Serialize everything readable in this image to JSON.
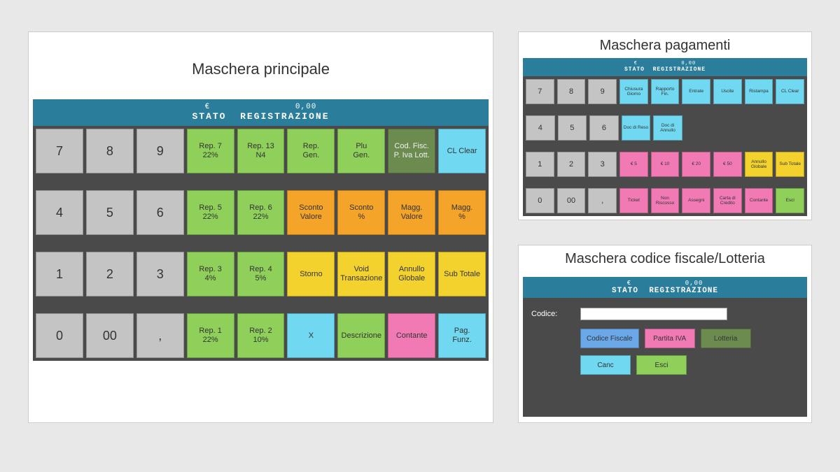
{
  "colors": {
    "page_bg": "#e8e8e8",
    "panel_bg": "#ffffff",
    "grid_bg": "#4a4a4a",
    "header_bg": "#2a7d9b",
    "num_bg": "#c4c4c4",
    "green": "#8ed05a",
    "olive": "#6c8b4f",
    "cyan": "#70d8f0",
    "orange": "#f4a428",
    "yellow": "#f4d22e",
    "pink": "#f17ab5",
    "blue": "#6aa8e8"
  },
  "header": {
    "line1_prefix": "€",
    "amount": "0,00",
    "status_label": "STATO",
    "reg_label": "REGISTRAZIONE"
  },
  "main": {
    "title": "Maschera principale",
    "rows": [
      [
        {
          "t": "7",
          "cls": "num"
        },
        {
          "t": "8",
          "cls": "num"
        },
        {
          "t": "9",
          "cls": "num"
        },
        {
          "t": "Rep. 7",
          "s": "22%",
          "cls": "c-green"
        },
        {
          "t": "Rep. 13",
          "s": "N4",
          "cls": "c-green"
        },
        {
          "t": "Rep.",
          "s": "Gen.",
          "cls": "c-green"
        },
        {
          "t": "Plu",
          "s": "Gen.",
          "cls": "c-green"
        },
        {
          "t": "Cod. Fisc.",
          "s": "P. Iva Lott.",
          "cls": "c-olive"
        },
        {
          "t": "CL Clear",
          "cls": "c-cyan"
        }
      ],
      [
        {
          "t": "4",
          "cls": "num"
        },
        {
          "t": "5",
          "cls": "num"
        },
        {
          "t": "6",
          "cls": "num"
        },
        {
          "t": "Rep. 5",
          "s": "22%",
          "cls": "c-green"
        },
        {
          "t": "Rep. 6",
          "s": "22%",
          "cls": "c-green"
        },
        {
          "t": "Sconto",
          "s": "Valore",
          "cls": "c-orange"
        },
        {
          "t": "Sconto",
          "s": "%",
          "cls": "c-orange"
        },
        {
          "t": "Magg.",
          "s": "Valore",
          "cls": "c-orange"
        },
        {
          "t": "Magg.",
          "s": "%",
          "cls": "c-orange"
        }
      ],
      [
        {
          "t": "1",
          "cls": "num"
        },
        {
          "t": "2",
          "cls": "num"
        },
        {
          "t": "3",
          "cls": "num"
        },
        {
          "t": "Rep. 3",
          "s": "4%",
          "cls": "c-green"
        },
        {
          "t": "Rep. 4",
          "s": "5%",
          "cls": "c-green"
        },
        {
          "t": "Storno",
          "cls": "c-yellow"
        },
        {
          "t": "Void Transazione",
          "cls": "c-yellow"
        },
        {
          "t": "Annullo Globale",
          "cls": "c-yellow"
        },
        {
          "t": "Sub Totale",
          "cls": "c-yellow"
        }
      ],
      [
        {
          "t": "0",
          "cls": "num"
        },
        {
          "t": "00",
          "cls": "num"
        },
        {
          "t": ",",
          "cls": "num"
        },
        {
          "t": "Rep. 1",
          "s": "22%",
          "cls": "c-green"
        },
        {
          "t": "Rep. 2",
          "s": "10%",
          "cls": "c-green"
        },
        {
          "t": "X",
          "cls": "c-cyan"
        },
        {
          "t": "Descrizione",
          "cls": "c-green"
        },
        {
          "t": "Contante",
          "cls": "c-pink"
        },
        {
          "t": "Pag.",
          "s": "Funz.",
          "cls": "c-cyan"
        }
      ]
    ]
  },
  "pagam": {
    "title": "Maschera pagamenti",
    "rows": [
      [
        {
          "t": "7",
          "cls": "num"
        },
        {
          "t": "8",
          "cls": "num"
        },
        {
          "t": "9",
          "cls": "num"
        },
        {
          "t": "Chiusura Giorno",
          "cls": "c-cyan"
        },
        {
          "t": "Rapporto Fin.",
          "cls": "c-cyan"
        },
        {
          "t": "Entrate",
          "cls": "c-cyan"
        },
        {
          "t": "Uscite",
          "cls": "c-cyan"
        },
        {
          "t": "Ristampa",
          "cls": "c-cyan"
        },
        {
          "t": "CL Clear",
          "cls": "c-cyan"
        }
      ],
      [
        {
          "t": "4",
          "cls": "num"
        },
        {
          "t": "5",
          "cls": "num"
        },
        {
          "t": "6",
          "cls": "num"
        },
        {
          "t": "Doc di Reso",
          "cls": "c-cyan"
        },
        {
          "t": "Doc di Annullo",
          "cls": "c-cyan"
        },
        {
          "t": "",
          "cls": "c-empty"
        },
        {
          "t": "",
          "cls": "c-empty"
        },
        {
          "t": "",
          "cls": "c-empty"
        },
        {
          "t": "",
          "cls": "c-empty"
        }
      ],
      [
        {
          "t": "1",
          "cls": "num"
        },
        {
          "t": "2",
          "cls": "num"
        },
        {
          "t": "3",
          "cls": "num"
        },
        {
          "t": "€ 5",
          "cls": "c-pink"
        },
        {
          "t": "€ 10",
          "cls": "c-pink"
        },
        {
          "t": "€ 20",
          "cls": "c-pink"
        },
        {
          "t": "€ 50",
          "cls": "c-pink"
        },
        {
          "t": "Annullo Globale",
          "cls": "c-yellow"
        },
        {
          "t": "Sub Totale",
          "cls": "c-yellow"
        }
      ],
      [
        {
          "t": "0",
          "cls": "num"
        },
        {
          "t": "00",
          "cls": "num"
        },
        {
          "t": ",",
          "cls": "num"
        },
        {
          "t": "Ticket",
          "cls": "c-pink"
        },
        {
          "t": "Non Riscosso",
          "cls": "c-pink"
        },
        {
          "t": "Assegni",
          "cls": "c-pink"
        },
        {
          "t": "Carta di Credito",
          "cls": "c-pink"
        },
        {
          "t": "Contante",
          "cls": "c-pink"
        },
        {
          "t": "Esci",
          "cls": "c-green"
        }
      ]
    ]
  },
  "codice": {
    "title": "Maschera codice fiscale/Lotteria",
    "label": "Codice:",
    "input_value": "",
    "buttons_row1": [
      {
        "t": "Codice Fiscale",
        "cls": "c-blue"
      },
      {
        "t": "Partita IVA",
        "cls": "c-pink"
      },
      {
        "t": "Lotteria",
        "cls": "c-olive"
      }
    ],
    "buttons_row2": [
      {
        "t": "Canc",
        "cls": "c-cyan"
      },
      {
        "t": "Esci",
        "cls": "c-green"
      }
    ]
  }
}
